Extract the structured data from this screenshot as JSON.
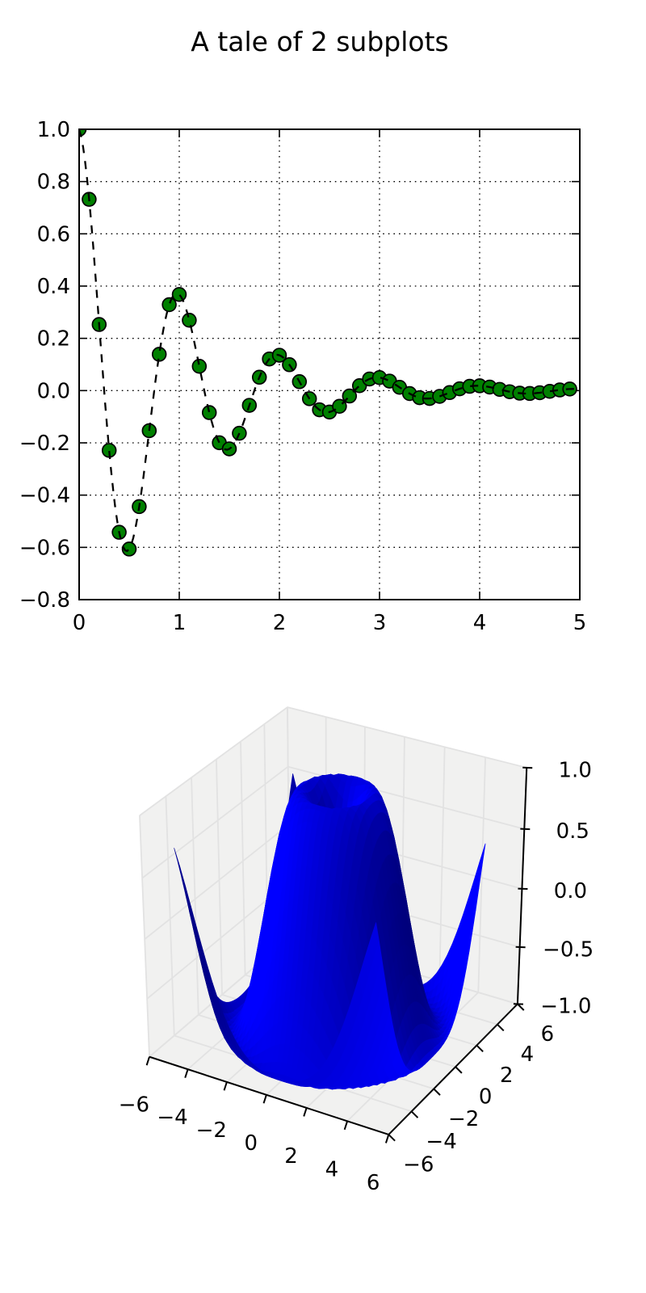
{
  "figure": {
    "title": "A tale of 2 subplots",
    "background": "#ffffff",
    "text_color": "#000000"
  },
  "chart_data": [
    {
      "type": "line",
      "subplot": "top",
      "description": "Damped oscillation: markers plus dashed curve",
      "xlim": [
        0,
        5
      ],
      "ylim": [
        -0.8,
        1.0
      ],
      "x_ticks": [
        0,
        1,
        2,
        3,
        4,
        5
      ],
      "x_tick_labels": [
        "0",
        "1",
        "2",
        "3",
        "4",
        "5"
      ],
      "y_ticks": [
        1.0,
        0.8,
        0.6,
        0.4,
        0.2,
        0.0,
        -0.2,
        -0.4,
        -0.6,
        -0.8
      ],
      "y_tick_labels": [
        "1.0",
        "0.8",
        "0.6",
        "0.4",
        "0.2",
        "0.0",
        "−0.2",
        "−0.4",
        "−0.6",
        "−0.8"
      ],
      "grid": true,
      "grid_style": "dotted",
      "grid_color": "#000000",
      "series": [
        {
          "name": "damped-oscillation-markers",
          "style": "markers",
          "marker_shape": "circle",
          "marker_color": "#008000",
          "marker_edge_color": "#000000",
          "x": [
            0.0,
            0.1,
            0.2,
            0.3,
            0.4,
            0.5,
            0.6,
            0.7,
            0.8,
            0.9,
            1.0,
            1.1,
            1.2,
            1.3,
            1.4,
            1.5,
            1.6,
            1.7,
            1.8,
            1.9,
            2.0,
            2.1,
            2.2,
            2.3,
            2.4,
            2.5,
            2.6,
            2.7,
            2.8,
            2.9,
            3.0,
            3.1,
            3.2,
            3.3,
            3.4,
            3.5,
            3.6,
            3.7,
            3.8,
            3.9,
            4.0,
            4.1,
            4.2,
            4.3,
            4.4,
            4.5,
            4.6,
            4.7,
            4.8,
            4.9
          ],
          "y": [
            1.0,
            0.732,
            0.253,
            -0.2289,
            -0.5423,
            -0.6065,
            -0.444,
            -0.1535,
            0.1389,
            0.3289,
            0.3679,
            0.2693,
            0.0931,
            -0.0842,
            -0.1995,
            -0.2231,
            -0.1633,
            -0.0565,
            0.0511,
            0.121,
            0.1353,
            0.0991,
            0.0342,
            -0.031,
            -0.0734,
            -0.0821,
            -0.0601,
            -0.0208,
            0.0188,
            0.0445,
            0.0498,
            0.0364,
            0.0126,
            -0.0114,
            -0.027,
            -0.0302,
            -0.0221,
            -0.0076,
            0.0069,
            0.0164,
            0.0183,
            0.0134,
            0.0046,
            -0.0042,
            -0.0099,
            -0.0111,
            -0.0081,
            -0.0028,
            0.0025,
            0.006
          ]
        },
        {
          "name": "damped-oscillation-line",
          "style": "dashed-line",
          "color": "#000000",
          "formula": "y = exp(-t) * cos(2*pi*t)",
          "t_start": 0,
          "t_end": 5,
          "t_step": 0.02
        }
      ]
    },
    {
      "type": "surface_3d",
      "subplot": "bottom",
      "formula": "z = sin(sqrt(x^2 + y^2))",
      "mesh_x_start": -5,
      "mesh_x_stop": 5,
      "mesh_step": 0.25,
      "xlim": [
        -6,
        6
      ],
      "ylim": [
        -6,
        6
      ],
      "zlim": [
        -1,
        1
      ],
      "x_ticks": [
        -6,
        -4,
        -2,
        0,
        2,
        4,
        6
      ],
      "x_tick_labels": [
        "−6",
        "−4",
        "−2",
        "0",
        "2",
        "4",
        "6"
      ],
      "y_ticks": [
        -6,
        -4,
        -2,
        0,
        2,
        4,
        6
      ],
      "y_tick_labels": [
        "−6",
        "−4",
        "−2",
        "0",
        "2",
        "4",
        "6"
      ],
      "z_ticks": [
        -1.0,
        -0.5,
        0.0,
        0.5,
        1.0
      ],
      "z_tick_labels": [
        "−1.0",
        "−0.5",
        "0.0",
        "0.5",
        "1.0"
      ],
      "surface_color": "#0000ff",
      "pane_color": "#f1f1f0",
      "pane_grid_color": "#e2e2e2",
      "axis_color": "#000000",
      "view": {
        "elev": 30,
        "azim": -60,
        "dist": 10
      }
    }
  ]
}
